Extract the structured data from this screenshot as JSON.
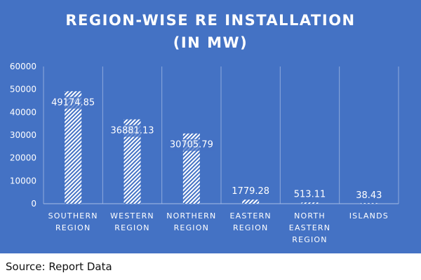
{
  "chart_data": {
    "type": "bar",
    "title_lines": [
      "REGION-WISE RE INSTALLATION",
      "(IN MW)"
    ],
    "categories": [
      [
        "SOUTHERN",
        "REGION"
      ],
      [
        "WESTERN",
        "REGION"
      ],
      [
        "NORTHERN",
        "REGION"
      ],
      [
        "EASTERN",
        "REGION"
      ],
      [
        "NORTH",
        "EASTERN",
        "REGION"
      ],
      [
        "ISLANDS"
      ]
    ],
    "values": [
      49174.85,
      36881.13,
      30705.79,
      1779.28,
      513.11,
      38.43
    ],
    "data_labels": [
      "49174.85",
      "36881.13",
      "30705.79",
      "1779.28",
      "513.11",
      "38.43"
    ],
    "y_ticks": [
      "0",
      "10000",
      "20000",
      "30000",
      "40000",
      "50000",
      "60000"
    ],
    "ylim": [
      0,
      60000
    ],
    "grid": "vertical category separators",
    "legend": "none",
    "colors": {
      "background": "#4472C4",
      "bar_hatch": "#ffffff",
      "text": "#ffffff"
    }
  },
  "footer": {
    "source": "Source: Report Data"
  }
}
